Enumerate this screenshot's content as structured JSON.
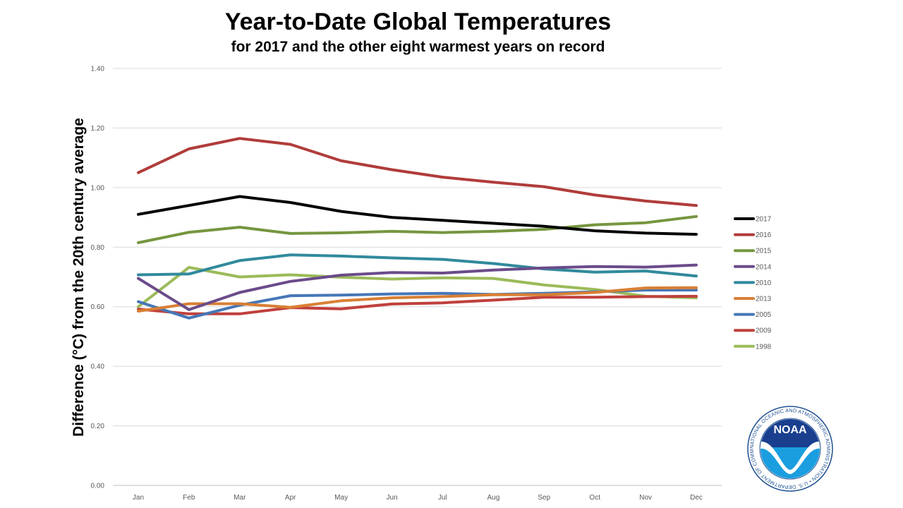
{
  "chart_data": {
    "type": "line",
    "title": "Year-to-Date Global Temperatures",
    "subtitle": "for 2017 and the other eight warmest years on record",
    "xlabel": "",
    "ylabel": "Difference (°C) from the 20th century average",
    "ylim": [
      0,
      1.4
    ],
    "yticks": [
      "0.00",
      "0.20",
      "0.40",
      "0.60",
      "0.80",
      "1.00",
      "1.20",
      "1.40"
    ],
    "categories": [
      "Jan",
      "Feb",
      "Mar",
      "Apr",
      "May",
      "Jun",
      "Jul",
      "Aug",
      "Sep",
      "Oct",
      "Nov",
      "Dec"
    ],
    "grid": true,
    "legend_position": "right",
    "series": [
      {
        "name": "2017",
        "color": "#000000",
        "values": [
          0.91,
          0.94,
          0.97,
          0.95,
          0.92,
          0.9,
          0.89,
          0.88,
          0.87,
          0.855,
          0.847,
          0.843
        ]
      },
      {
        "name": "2016",
        "color": "#b03c3a",
        "values": [
          1.05,
          1.13,
          1.165,
          1.145,
          1.09,
          1.06,
          1.035,
          1.018,
          1.003,
          0.975,
          0.955,
          0.94
        ]
      },
      {
        "name": "2015",
        "color": "#76963f",
        "values": [
          0.815,
          0.85,
          0.867,
          0.846,
          0.848,
          0.853,
          0.849,
          0.853,
          0.86,
          0.875,
          0.882,
          0.903
        ]
      },
      {
        "name": "2014",
        "color": "#6b4b8a",
        "values": [
          0.695,
          0.59,
          0.648,
          0.685,
          0.706,
          0.715,
          0.713,
          0.723,
          0.73,
          0.735,
          0.733,
          0.74
        ]
      },
      {
        "name": "2010",
        "color": "#318a9c",
        "values": [
          0.707,
          0.71,
          0.755,
          0.774,
          0.77,
          0.764,
          0.759,
          0.745,
          0.727,
          0.716,
          0.72,
          0.703
        ]
      },
      {
        "name": "2013",
        "color": "#d97f34",
        "values": [
          0.585,
          0.61,
          0.61,
          0.598,
          0.62,
          0.63,
          0.634,
          0.64,
          0.64,
          0.648,
          0.663,
          0.664
        ]
      },
      {
        "name": "2005",
        "color": "#4677b7",
        "values": [
          0.617,
          0.562,
          0.605,
          0.637,
          0.639,
          0.643,
          0.645,
          0.641,
          0.645,
          0.65,
          0.656,
          0.656
        ]
      },
      {
        "name": "2009",
        "color": "#c0403d",
        "values": [
          0.592,
          0.576,
          0.576,
          0.597,
          0.593,
          0.609,
          0.613,
          0.622,
          0.632,
          0.632,
          0.634,
          0.635
        ]
      },
      {
        "name": "1998",
        "color": "#9bbb59",
        "values": [
          0.6,
          0.732,
          0.7,
          0.707,
          0.699,
          0.693,
          0.697,
          0.695,
          0.673,
          0.658,
          0.635,
          0.63
        ]
      }
    ]
  },
  "logo": {
    "text": "NOAA",
    "ring_text": "NATIONAL OCEANIC AND ATMOSPHERIC ADMINISTRATION • U.S. DEPARTMENT OF COMMERCE •"
  }
}
